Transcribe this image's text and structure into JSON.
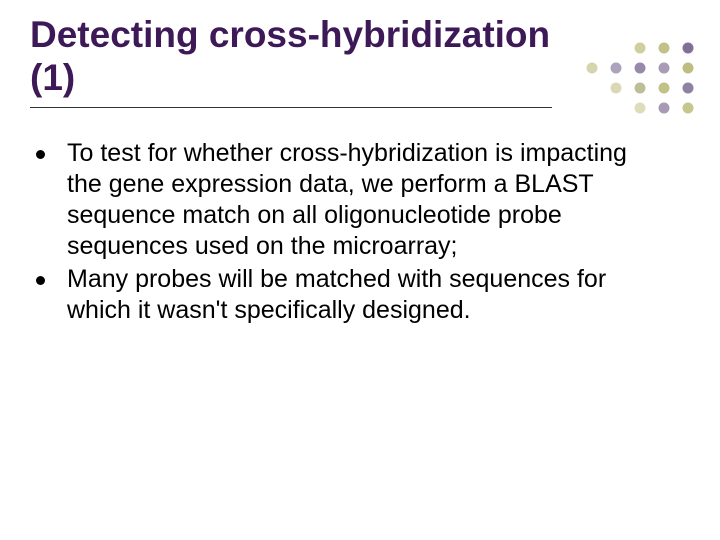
{
  "slide": {
    "title": "Detecting cross-hybridization (1)",
    "title_color": "#3d1a57",
    "title_fontsize": 37,
    "underline_color": "#333333",
    "underline_width": 522,
    "body_fontsize": 25,
    "body_color": "#000000",
    "bullet_color": "#000000",
    "bullets": [
      "To test for whether cross-hybridization is impacting the gene expression data, we perform a BLAST sequence match on all oligonucleotide probe sequences used on the microarray;",
      "Many probes will be matched with sequences for which it wasn't specifically designed."
    ]
  },
  "decoration": {
    "type": "dot-grid",
    "rows": 4,
    "cols": 5,
    "dot_radius": 5.5,
    "hspacing": 24,
    "vspacing": 20,
    "dots": [
      {
        "r": 0,
        "c": 2,
        "fill": "#b3b36a",
        "opacity": 0.65
      },
      {
        "r": 0,
        "c": 3,
        "fill": "#b3b36a",
        "opacity": 0.8
      },
      {
        "r": 0,
        "c": 4,
        "fill": "#6a5785",
        "opacity": 0.85
      },
      {
        "r": 1,
        "c": 0,
        "fill": "#b3b36a",
        "opacity": 0.55
      },
      {
        "r": 1,
        "c": 1,
        "fill": "#6a5785",
        "opacity": 0.55
      },
      {
        "r": 1,
        "c": 2,
        "fill": "#6a5785",
        "opacity": 0.7
      },
      {
        "r": 1,
        "c": 3,
        "fill": "#8a7aa0",
        "opacity": 0.75
      },
      {
        "r": 1,
        "c": 4,
        "fill": "#b3b36a",
        "opacity": 0.85
      },
      {
        "r": 2,
        "c": 1,
        "fill": "#b3b36a",
        "opacity": 0.5
      },
      {
        "r": 2,
        "c": 2,
        "fill": "#9b9b5e",
        "opacity": 0.65
      },
      {
        "r": 2,
        "c": 3,
        "fill": "#b3b36a",
        "opacity": 0.8
      },
      {
        "r": 2,
        "c": 4,
        "fill": "#6a5785",
        "opacity": 0.75
      },
      {
        "r": 3,
        "c": 2,
        "fill": "#b3b36a",
        "opacity": 0.45
      },
      {
        "r": 3,
        "c": 3,
        "fill": "#6a5785",
        "opacity": 0.6
      },
      {
        "r": 3,
        "c": 4,
        "fill": "#b3b36a",
        "opacity": 0.75
      }
    ]
  },
  "background_color": "#ffffff"
}
